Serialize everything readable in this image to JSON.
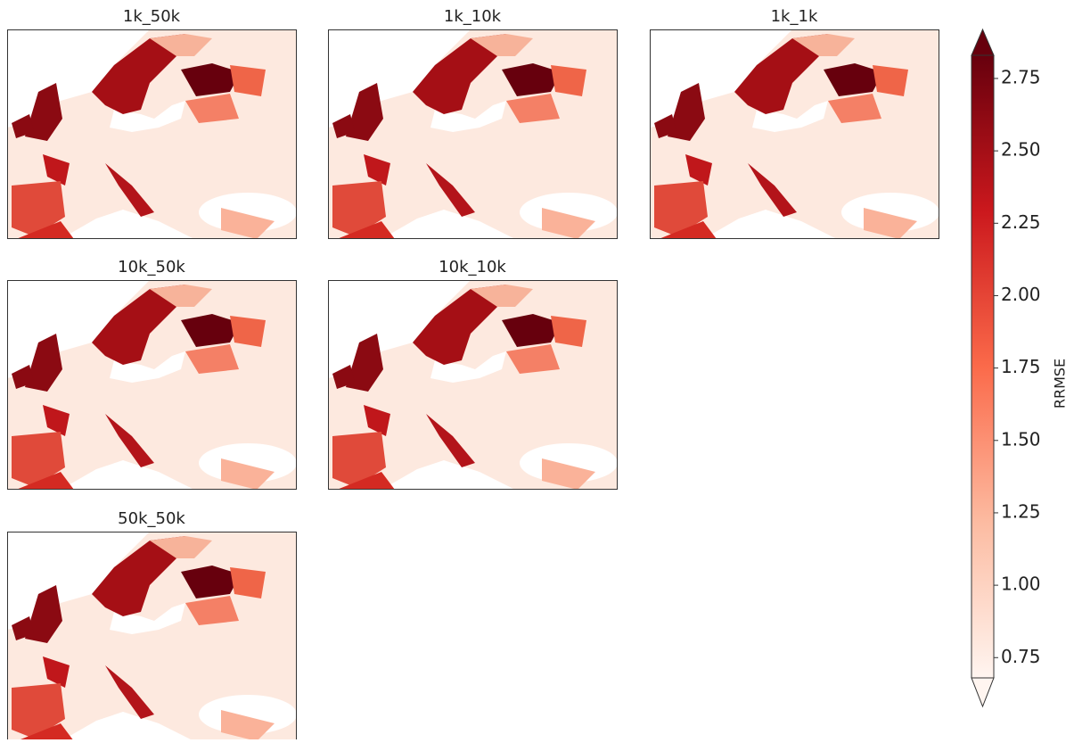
{
  "panels": [
    {
      "title": "1k_50k"
    },
    {
      "title": "1k_10k"
    },
    {
      "title": "1k_1k"
    },
    {
      "title": "10k_50k"
    },
    {
      "title": "10k_10k"
    },
    {
      "title": "50k_50k"
    }
  ],
  "colorbar": {
    "label": "RRMSE",
    "lim": [
      0.68,
      2.83
    ],
    "ticks": [
      0.75,
      {
        "value": 1.0,
        "label": "1.00"
      },
      1.25,
      {
        "value": 1.5,
        "label": "1.50"
      },
      1.75,
      {
        "value": 2.0,
        "label": "2.00"
      },
      2.25,
      {
        "value": 2.5,
        "label": "2.50"
      },
      2.75
    ]
  }
}
